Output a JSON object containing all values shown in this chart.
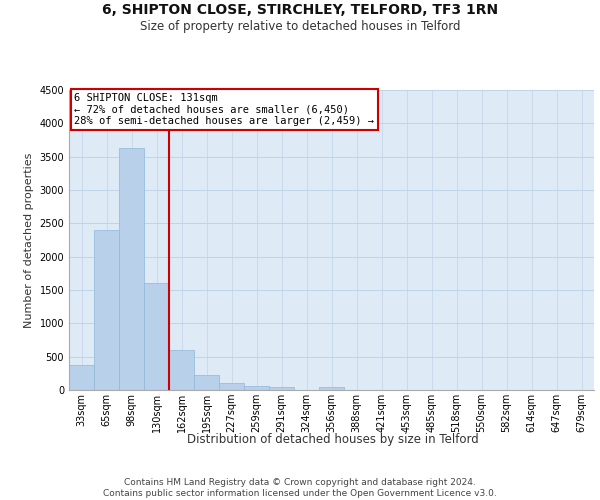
{
  "title": "6, SHIPTON CLOSE, STIRCHLEY, TELFORD, TF3 1RN",
  "subtitle": "Size of property relative to detached houses in Telford",
  "xlabel": "Distribution of detached houses by size in Telford",
  "ylabel": "Number of detached properties",
  "bar_values": [
    375,
    2400,
    3625,
    1600,
    600,
    225,
    100,
    60,
    50,
    0,
    50,
    0,
    0,
    0,
    0,
    0,
    0,
    0,
    0,
    0,
    0
  ],
  "x_labels": [
    "33sqm",
    "65sqm",
    "98sqm",
    "130sqm",
    "162sqm",
    "195sqm",
    "227sqm",
    "259sqm",
    "291sqm",
    "324sqm",
    "356sqm",
    "388sqm",
    "421sqm",
    "453sqm",
    "485sqm",
    "518sqm",
    "550sqm",
    "582sqm",
    "614sqm",
    "647sqm",
    "679sqm"
  ],
  "bar_color": "#b8d0ea",
  "bar_edge_color": "#8fb8d8",
  "grid_color": "#c0d4e8",
  "bg_color": "#deeaf6",
  "red_line_color": "#cc0000",
  "annotation_line1": "6 SHIPTON CLOSE: 131sqm",
  "annotation_line2": "← 72% of detached houses are smaller (6,450)",
  "annotation_line3": "28% of semi-detached houses are larger (2,459) →",
  "annotation_box_color": "#ffffff",
  "annotation_box_edge": "#cc0000",
  "ylim": [
    0,
    4500
  ],
  "yticks": [
    0,
    500,
    1000,
    1500,
    2000,
    2500,
    3000,
    3500,
    4000,
    4500
  ],
  "footer_line1": "Contains HM Land Registry data © Crown copyright and database right 2024.",
  "footer_line2": "Contains public sector information licensed under the Open Government Licence v3.0.",
  "title_fontsize": 10,
  "subtitle_fontsize": 8.5,
  "xlabel_fontsize": 8.5,
  "ylabel_fontsize": 8,
  "tick_fontsize": 7,
  "annotation_fontsize": 7.5,
  "footer_fontsize": 6.5
}
